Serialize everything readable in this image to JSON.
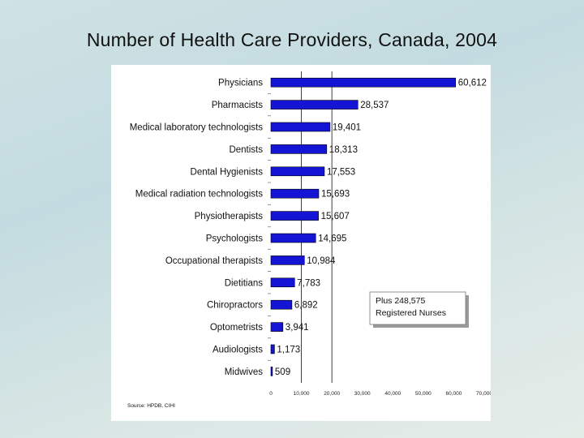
{
  "slide": {
    "title": "Number of Health Care Providers, Canada, 2004",
    "source": "Source: HPDB, CIHI",
    "note_lines": [
      "Plus 248,575",
      "Registered Nurses"
    ]
  },
  "chart_data": {
    "type": "bar",
    "orientation": "horizontal",
    "title": "Number of Health Care Providers, Canada, 2004",
    "categories": [
      "Physicians",
      "Pharmacists",
      "Medical laboratory technologists",
      "Dentists",
      "Dental Hygienists",
      "Medical radiation technologists",
      "Physiotherapists",
      "Psychologists",
      "Occupational therapists",
      "Dietitians",
      "Chiropractors",
      "Optometrists",
      "Audiologists",
      "Midwives"
    ],
    "values": [
      60612,
      28537,
      19401,
      18313,
      17553,
      15693,
      15607,
      14695,
      10984,
      7783,
      6892,
      3941,
      1173,
      509
    ],
    "value_labels": [
      "60,612",
      "28,537",
      "19,401",
      "18,313",
      "17,553",
      "15,693",
      "15,607",
      "14,695",
      "10,984",
      "7,783",
      "6,892",
      "3,941",
      "1,173",
      "509"
    ],
    "xlim": [
      0,
      70000
    ],
    "xticks": [
      0,
      10000,
      20000,
      30000,
      40000,
      50000,
      60000,
      70000
    ],
    "xtick_labels": [
      "0",
      "10,000",
      "20,000",
      "30,000",
      "40,000",
      "50,000",
      "60,000",
      "70,000"
    ],
    "gridlines_at": [
      10000,
      20000
    ],
    "bar_color": "#1414d4",
    "xlabel": "",
    "ylabel": ""
  }
}
